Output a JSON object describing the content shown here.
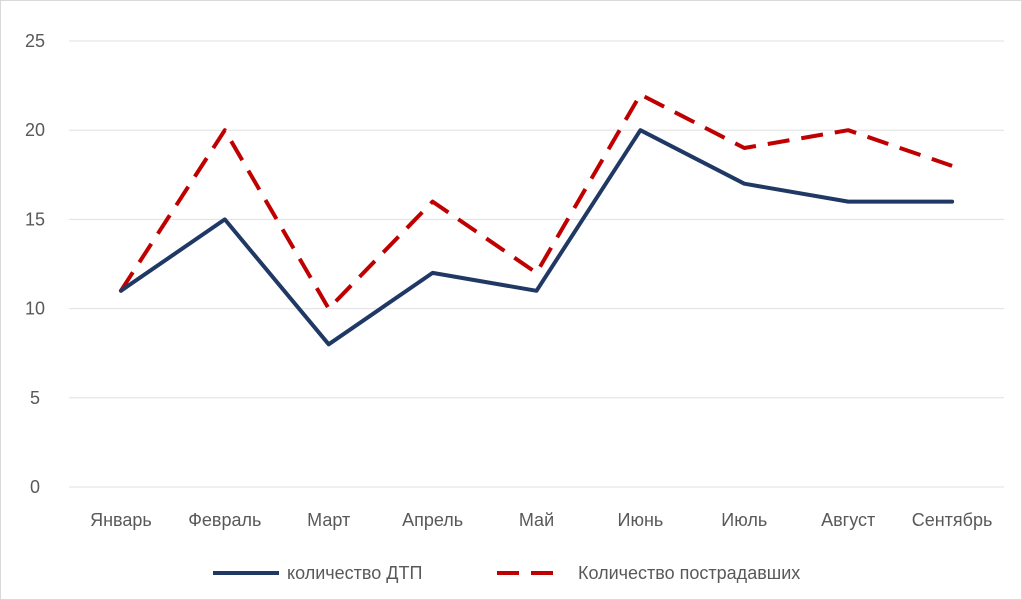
{
  "chart_data": {
    "type": "line",
    "categories": [
      "Январь",
      "Февраль",
      "Март",
      "Апрель",
      "Май",
      "Июнь",
      "Июль",
      "Август",
      "Сентябрь"
    ],
    "series": [
      {
        "name": "количество ДТП",
        "values": [
          11,
          15,
          8,
          12,
          11,
          20,
          17,
          16,
          16
        ],
        "color": "#1f3864",
        "style": "solid"
      },
      {
        "name": "Количество пострадавших",
        "values": [
          11,
          20,
          10,
          16,
          12,
          22,
          19,
          20,
          18
        ],
        "color": "#c00000",
        "style": "dashed"
      }
    ],
    "ylim": [
      0,
      25
    ],
    "yticks": [
      "0",
      "5",
      "10",
      "15",
      "20",
      "25"
    ],
    "grid": true,
    "legend_position": "bottom",
    "gridline_color": "#e0e0e0"
  }
}
